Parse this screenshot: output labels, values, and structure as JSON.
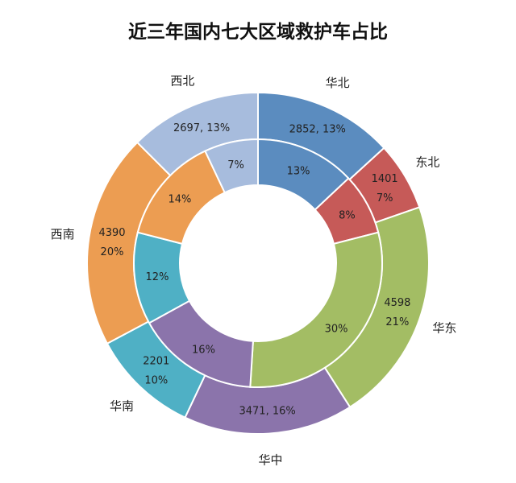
{
  "chart_data": {
    "type": "pie",
    "subtype": "double-donut",
    "title": "近三年国内七大区域救护车占比",
    "categories": [
      "华北",
      "东北",
      "华东",
      "华中",
      "华南",
      "西南",
      "西北"
    ],
    "colors": [
      "#5b8cbf",
      "#c65a58",
      "#a3bd64",
      "#8b74ab",
      "#4fb0c5",
      "#ec9d52",
      "#a7bcdd"
    ],
    "outer": {
      "values": [
        2852,
        1401,
        4598,
        3471,
        2201,
        4390,
        2697
      ],
      "percents": [
        13,
        7,
        21,
        16,
        10,
        20,
        13
      ],
      "labels": [
        [
          "2852, 13%"
        ],
        [
          "1401",
          "7%"
        ],
        [
          "4598",
          "21%"
        ],
        [
          "3471, 16%"
        ],
        [
          "2201",
          "10%"
        ],
        [
          "4390",
          "20%"
        ],
        [
          "2697, 13%"
        ]
      ]
    },
    "inner": {
      "percents": [
        13,
        8,
        30,
        16,
        12,
        14,
        7
      ],
      "labels": [
        "13%",
        "8%",
        "30%",
        "16%",
        "12%",
        "14%",
        "7%"
      ]
    },
    "start_angle": "12 o'clock, clockwise",
    "legend": "none (category labels outside ring)"
  }
}
